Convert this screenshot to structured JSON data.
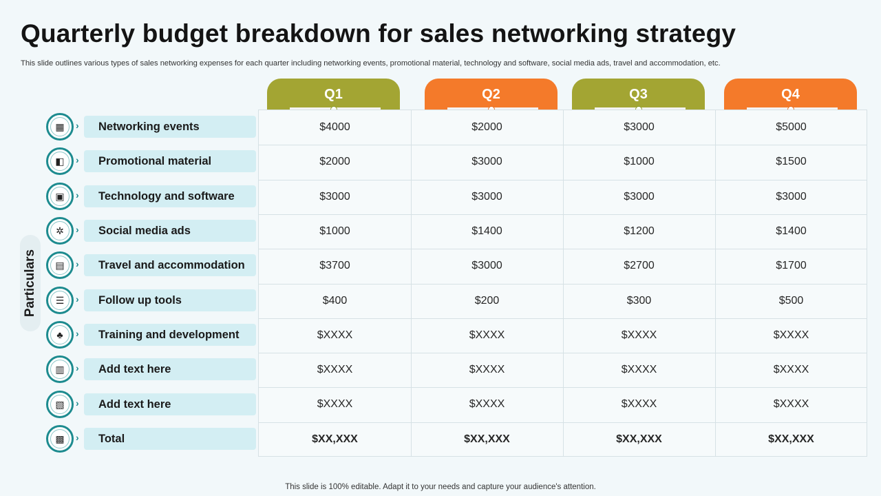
{
  "title": "Quarterly budget breakdown for sales networking strategy",
  "subtitle": "This slide outlines various types of sales networking expenses for each quarter including networking events, promotional material, technology and software, social media ads, travel and accommodation, etc.",
  "side_label": "Particulars",
  "footer": "This slide is 100% editable. Adapt it to your needs and capture your audience's attention.",
  "colors": {
    "olive": "#a3a533",
    "orange": "#f47a2a",
    "teal": "#1d8b8f",
    "label_bg": "#d3eef3"
  },
  "quarters": [
    "Q1",
    "Q2",
    "Q3",
    "Q4"
  ],
  "rows": [
    {
      "label": "Networking events",
      "icon": "calendar-icon",
      "glyph": "▦",
      "values": [
        "$4000",
        "$2000",
        "$3000",
        "$5000"
      ]
    },
    {
      "label": "Promotional material",
      "icon": "megaphone-document-icon",
      "glyph": "◧",
      "values": [
        "$2000",
        "$3000",
        "$1000",
        "$1500"
      ]
    },
    {
      "label": "Technology and software",
      "icon": "monitor-icon",
      "glyph": "▣",
      "values": [
        "$3000",
        "$3000",
        "$3000",
        "$3000"
      ]
    },
    {
      "label": "Social media ads",
      "icon": "social-network-icon",
      "glyph": "✲",
      "values": [
        "$1000",
        "$1400",
        "$1200",
        "$1400"
      ]
    },
    {
      "label": "Travel and accommodation",
      "icon": "suitcase-icon",
      "glyph": "▤",
      "values": [
        "$3700",
        "$3000",
        "$2700",
        "$1700"
      ]
    },
    {
      "label": "Follow up tools",
      "icon": "checklist-icon",
      "glyph": "☰",
      "values": [
        "$400",
        "$200",
        "$300",
        "$500"
      ]
    },
    {
      "label": "Training and development",
      "icon": "training-icon",
      "glyph": "♣",
      "values": [
        "$XXXX",
        "$XXXX",
        "$XXXX",
        "$XXXX"
      ]
    },
    {
      "label": "Add text here",
      "icon": "notebook-icon",
      "glyph": "▥",
      "values": [
        "$XXXX",
        "$XXXX",
        "$XXXX",
        "$XXXX"
      ]
    },
    {
      "label": "Add text here",
      "icon": "file-icon",
      "glyph": "▧",
      "values": [
        "$XXXX",
        "$XXXX",
        "$XXXX",
        "$XXXX"
      ]
    },
    {
      "label": "Total",
      "icon": "money-stack-icon",
      "glyph": "▩",
      "values": [
        "$XX,XXX",
        "$XX,XXX",
        "$XX,XXX",
        "$XX,XXX"
      ],
      "bold": true
    }
  ]
}
